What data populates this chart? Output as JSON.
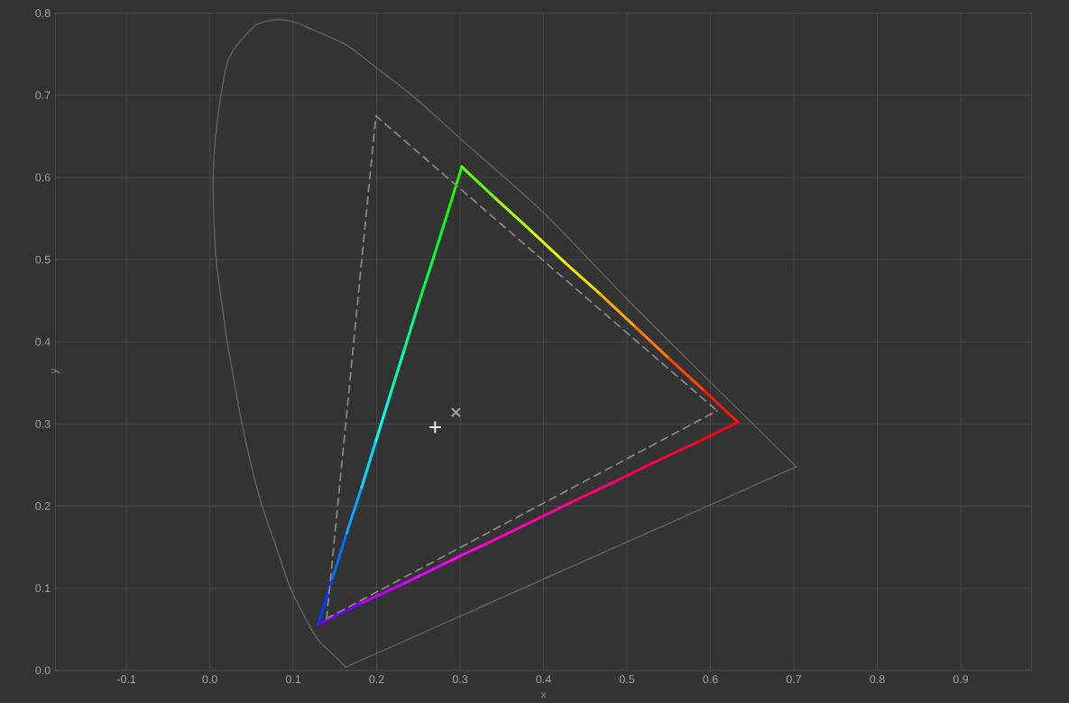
{
  "chart_data": {
    "type": "line",
    "xlabel": "x",
    "ylabel": "y",
    "xlim": [
      -0.185,
      0.985
    ],
    "ylim": [
      0,
      0.8
    ],
    "xticks": [
      -0.1,
      {
        "value": 0,
        "label": "0.0"
      },
      0.1,
      0.2,
      0.3,
      0.4,
      0.5,
      0.6,
      0.7,
      0.8,
      0.9
    ],
    "yticks": [
      {
        "value": 0,
        "label": "0.0"
      },
      0.1,
      0.2,
      0.3,
      0.4,
      0.5,
      0.6,
      0.7,
      0.8
    ],
    "grid": true,
    "series": [
      {
        "color": "#5e5e5e",
        "x": [
          0.163,
          0.145,
          0.127,
          0.098,
          0.081,
          0.06,
          0.039,
          0.021,
          0.017,
          0.008,
          0.005,
          0.004,
          0.006,
          0.01,
          0.019,
          0.027,
          0.04,
          0.056,
          0.079,
          0.102,
          0.123,
          0.164,
          0.199,
          0.247,
          0.305,
          0.4,
          0.499,
          0.576,
          0.703
        ],
        "values": [
          0.004,
          0.022,
          0.041,
          0.097,
          0.146,
          0.209,
          0.298,
          0.399,
          0.428,
          0.495,
          0.546,
          0.601,
          0.639,
          0.677,
          0.732,
          0.753,
          0.77,
          0.786,
          0.792,
          0.789,
          0.78,
          0.761,
          0.734,
          0.696,
          0.643,
          0.557,
          0.453,
          0.375,
          0.248
        ]
      },
      {
        "color": "#5e5e5e",
        "x": [
          0.163,
          0.703
        ],
        "values": [
          0.004,
          0.248
        ]
      },
      {
        "color": "#003cff",
        "x": [
          0.13,
          0.147
        ],
        "values": [
          0.056,
          0.112
        ]
      },
      {
        "color": "#0071ff",
        "x": [
          0.147,
          0.164
        ],
        "values": [
          0.112,
          0.167
        ]
      },
      {
        "color": "#00a6ff",
        "x": [
          0.164,
          0.182
        ],
        "values": [
          0.167,
          0.223
        ]
      },
      {
        "color": "#00daff",
        "x": [
          0.182,
          0.199
        ],
        "values": [
          0.223,
          0.279
        ]
      },
      {
        "color": "#00ffef",
        "x": [
          0.199,
          0.216
        ],
        "values": [
          0.279,
          0.335
        ]
      },
      {
        "color": "#00ffba",
        "x": [
          0.216,
          0.233
        ],
        "values": [
          0.335,
          0.39
        ]
      },
      {
        "color": "#00ff85",
        "x": [
          0.233,
          0.25
        ],
        "values": [
          0.39,
          0.446
        ]
      },
      {
        "color": "#00ff51",
        "x": [
          0.25,
          0.268
        ],
        "values": [
          0.446,
          0.502
        ]
      },
      {
        "color": "#00ff1c",
        "x": [
          0.268,
          0.285
        ],
        "values": [
          0.502,
          0.557
        ]
      },
      {
        "color": "#19ff00",
        "x": [
          0.285,
          0.302
        ],
        "values": [
          0.557,
          0.613
        ]
      },
      {
        "color": "#65ff00",
        "x": [
          0.302,
          0.343
        ],
        "values": [
          0.613,
          0.574
        ]
      },
      {
        "color": "#abff00",
        "x": [
          0.343,
          0.385
        ],
        "values": [
          0.574,
          0.535
        ]
      },
      {
        "color": "#e8ff00",
        "x": [
          0.385,
          0.426
        ],
        "values": [
          0.535,
          0.496
        ]
      },
      {
        "color": "#ffde00",
        "x": [
          0.426,
          0.468
        ],
        "values": [
          0.496,
          0.458
        ]
      },
      {
        "color": "#ffa900",
        "x": [
          0.468,
          0.509
        ],
        "values": [
          0.458,
          0.419
        ]
      },
      {
        "color": "#ff7700",
        "x": [
          0.509,
          0.55
        ],
        "values": [
          0.419,
          0.38
        ]
      },
      {
        "color": "#ff4600",
        "x": [
          0.55,
          0.592
        ],
        "values": [
          0.38,
          0.341
        ]
      },
      {
        "color": "#ff1700",
        "x": [
          0.592,
          0.633
        ],
        "values": [
          0.341,
          0.302
        ]
      },
      {
        "color": "#ff0011",
        "x": [
          0.633,
          0.583
        ],
        "values": [
          0.302,
          0.277
        ]
      },
      {
        "color": "#ff0033",
        "x": [
          0.583,
          0.532
        ],
        "values": [
          0.277,
          0.253
        ]
      },
      {
        "color": "#ff0055",
        "x": [
          0.532,
          0.482
        ],
        "values": [
          0.253,
          0.228
        ]
      },
      {
        "color": "#ff007b",
        "x": [
          0.482,
          0.432
        ],
        "values": [
          0.228,
          0.204
        ]
      },
      {
        "color": "#ff009d",
        "x": [
          0.432,
          0.382
        ],
        "values": [
          0.204,
          0.179
        ]
      },
      {
        "color": "#ff00bf",
        "x": [
          0.382,
          0.331
        ],
        "values": [
          0.179,
          0.154
        ]
      },
      {
        "color": "#ff00ee",
        "x": [
          0.331,
          0.281
        ],
        "values": [
          0.154,
          0.13
        ]
      },
      {
        "color": "#e600ff",
        "x": [
          0.281,
          0.231
        ],
        "values": [
          0.13,
          0.105
        ]
      },
      {
        "color": "#bf00ff",
        "x": [
          0.231,
          0.18
        ],
        "values": [
          0.105,
          0.081
        ]
      },
      {
        "color": "#7700ff",
        "x": [
          0.18,
          0.13
        ],
        "values": [
          0.081,
          0.056
        ]
      },
      {
        "color": "#858585",
        "line_style": "dashed",
        "x": [
          0.14,
          0.199,
          0.608
        ],
        "values": [
          0.063,
          0.675,
          0.316
        ]
      },
      {
        "color": "#858585",
        "line_style": "dashed",
        "x": [
          0.14,
          0.608
        ],
        "values": [
          0.063,
          0.316
        ]
      },
      {
        "type": "scatter",
        "marker": "plus",
        "color": "#f0f0f0",
        "x": [
          0.27
        ],
        "values": [
          0.296
        ]
      },
      {
        "type": "scatter",
        "marker": "cross",
        "color": "#a0a0a0",
        "x": [
          0.295
        ],
        "values": [
          0.314
        ]
      }
    ]
  }
}
